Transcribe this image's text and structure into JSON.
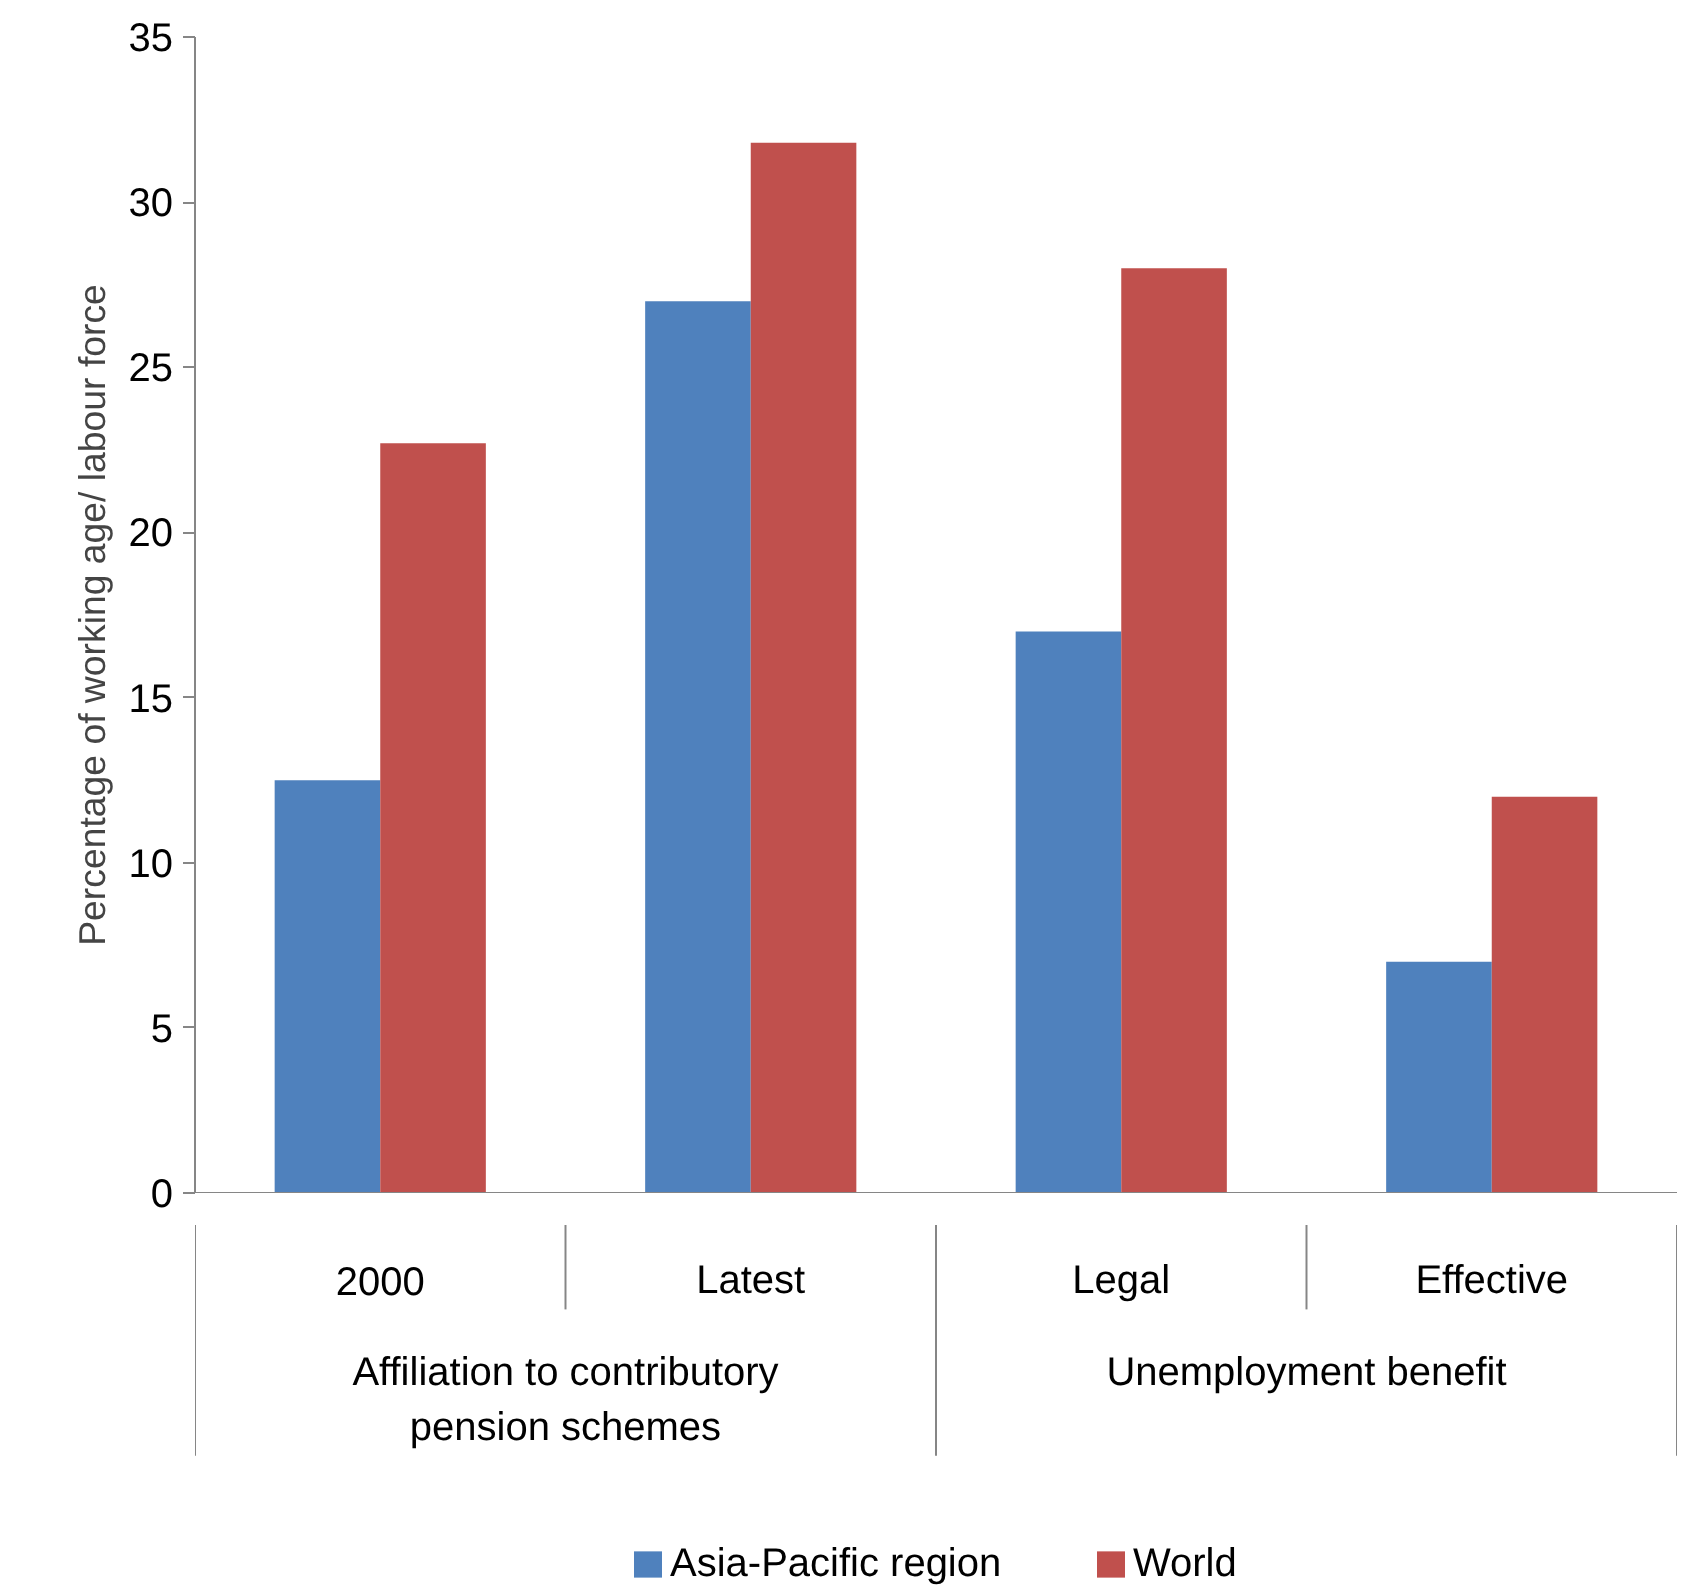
{
  "chart_data": {
    "type": "bar",
    "ylabel": "Percentage of working age/ labour force",
    "categories": [
      "2000",
      "Latest",
      "Legal",
      "Effective"
    ],
    "series": [
      {
        "name": "Asia-Pacific region",
        "color": "#4f81bd",
        "values": [
          12.5,
          27,
          17,
          7
        ]
      },
      {
        "name": "World",
        "color": "#c0504d",
        "values": [
          22.7,
          31.8,
          28,
          12
        ]
      }
    ],
    "annotations": [
      "Affiliation to contributory pension schemes",
      "Unemployment benefit"
    ],
    "ylim": [
      0,
      35
    ],
    "yticks": [
      0,
      5,
      10,
      15,
      20,
      25,
      30,
      35
    ],
    "grid": false,
    "legend": "bottom"
  }
}
